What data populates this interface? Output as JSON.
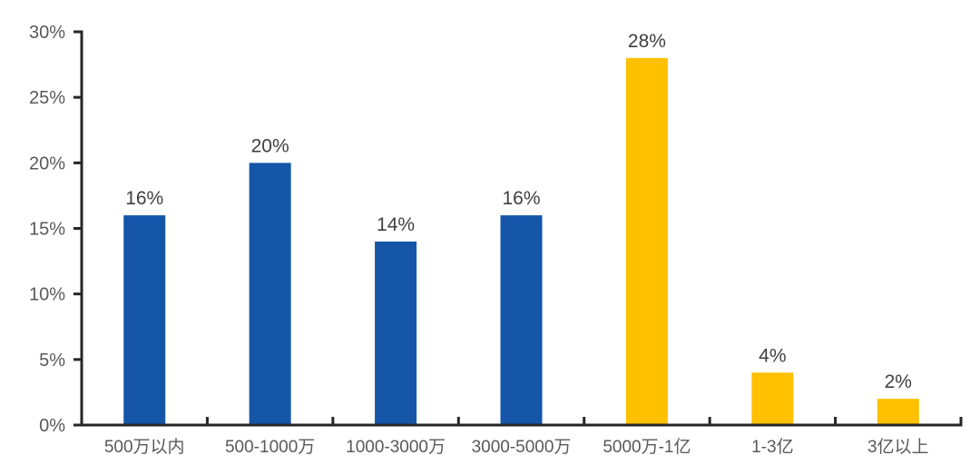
{
  "chart_data": {
    "type": "bar",
    "title": "",
    "xlabel": "",
    "ylabel": "",
    "categories": [
      "500万以内",
      "500-1000万",
      "1000-3000万",
      "3000-5000万",
      "5000万-1亿",
      "1-3亿",
      "3亿以上"
    ],
    "values": [
      16,
      20,
      14,
      16,
      28,
      4,
      2
    ],
    "data_labels": [
      "16%",
      "20%",
      "14%",
      "16%",
      "28%",
      "4%",
      "2%"
    ],
    "bar_colors": [
      "#1656A8",
      "#1656A8",
      "#1656A8",
      "#1656A8",
      "#FFC000",
      "#FFC000",
      "#FFC000"
    ],
    "ylim": [
      0,
      30
    ],
    "y_tick_step": 5,
    "y_tick_labels": [
      "0%",
      "5%",
      "10%",
      "15%",
      "20%",
      "25%",
      "30%"
    ],
    "grid": false,
    "legend": "none",
    "colors": {
      "axis_line": "#262626",
      "axis_tick_label": "#595959",
      "category_label": "#595959",
      "data_label": "#404040",
      "background": "#ffffff",
      "series_blue": "#1656A8",
      "series_gold": "#FFC000"
    }
  }
}
